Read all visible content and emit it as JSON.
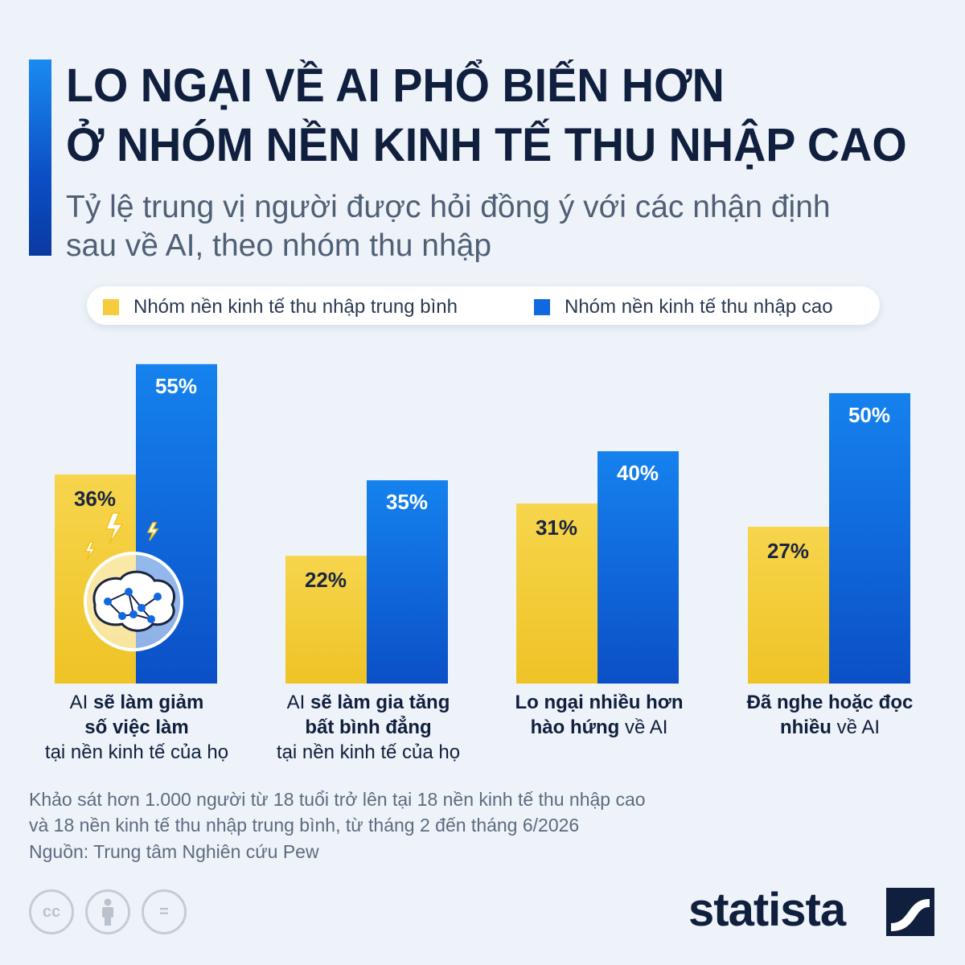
{
  "title_lines": [
    "LO NGẠI VỀ AI PHỔ BIẾN HƠN",
    "Ở NHÓM NỀN KINH TẾ THU NHẬP CAO"
  ],
  "subtitle_lines": [
    "Tỷ lệ trung vị người được hỏi đồng ý với các nhận định",
    "sau về AI, theo nhóm thu nhập"
  ],
  "legend": [
    {
      "label": "Nhóm nền kinh tế thu nhập trung bình",
      "color": "#f5cc3c"
    },
    {
      "label": "Nhóm nền kinh tế thu nhập cao",
      "color": "#1168e0"
    }
  ],
  "chart_data": {
    "type": "bar",
    "unit": "%",
    "ylim": [
      0,
      55
    ],
    "grid": false,
    "legend_position": "top",
    "categories": [
      {
        "bold_1": "",
        "normal_1": "AI ",
        "bold_1b": "sẽ làm giảm",
        "bold_2": "số việc làm",
        "normal_3": "tại nền kinh tế của họ"
      },
      {
        "bold_1": "",
        "normal_1": "AI ",
        "bold_1b": "sẽ làm gia tăng",
        "bold_2": "bất bình đẳng",
        "normal_3": "tại nền kinh tế của họ"
      },
      {
        "bold_1": "Lo ngại nhiều hơn",
        "normal_1": "",
        "bold_1b": "",
        "bold_2": "hào hứng",
        "normal_2": " về AI",
        "normal_3": ""
      },
      {
        "bold_1": "Đã nghe hoặc đọc",
        "normal_1": "",
        "bold_1b": "",
        "bold_2": "nhiều",
        "normal_2": " về AI",
        "normal_3": ""
      }
    ],
    "series": [
      {
        "name": "Nhóm nền kinh tế thu nhập trung bình",
        "values": [
          36,
          22,
          31,
          27
        ],
        "labels": [
          "36%",
          "22%",
          "31%",
          "27%"
        ]
      },
      {
        "name": "Nhóm nền kinh tế thu nhập cao",
        "values": [
          55,
          35,
          40,
          50
        ],
        "labels": [
          "55%",
          "35%",
          "40%",
          "50%"
        ]
      }
    ]
  },
  "note_lines": [
    "Khảo sát hơn 1.000 người từ 18 tuổi trở lên tại 18 nền kinh tế thu nhập cao",
    "và 18 nền kinh tế thu nhập trung bình, từ tháng 2 đến tháng 6/2026"
  ],
  "source": "Nguồn: Trung tâm Nghiên cứu Pew",
  "license_icons": [
    {
      "name": "cc-icon",
      "text": "cc"
    },
    {
      "name": "attribution-icon",
      "text": ""
    },
    {
      "name": "no-derivatives-icon",
      "text": "="
    }
  ],
  "brand": "statista",
  "colors": {
    "middle_top": "#f7d54c",
    "middle_bottom": "#eec326",
    "high_top": "#1582ee",
    "high_bottom": "#0b4fc6",
    "label_dark": "#1a2540",
    "label_light": "#ffffff"
  }
}
